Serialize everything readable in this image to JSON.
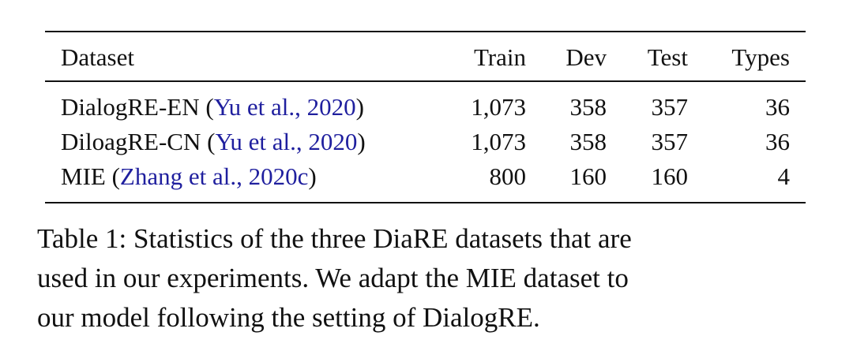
{
  "table": {
    "header": [
      "Dataset",
      "Train",
      "Dev",
      "Test",
      "Types"
    ],
    "rows": [
      {
        "name": "DialogRE-EN (",
        "cite": "Yu et al., 2020",
        "close": ")",
        "cells": [
          "1,073",
          358,
          357,
          36
        ]
      },
      {
        "name": "DiloagRE-CN (",
        "cite": "Yu et al., 2020",
        "close": ")",
        "cells": [
          "1,073",
          358,
          357,
          36
        ]
      },
      {
        "name": "MIE (",
        "cite": "Zhang et al., 2020c",
        "close": ")",
        "cells": [
          800,
          160,
          160,
          4
        ]
      }
    ]
  },
  "caption": {
    "lines": [
      "Table 1: Statistics of the three DiaRE datasets that are",
      "used in our experiments. We adapt the MIE dataset to",
      "our model following the setting of DialogRE."
    ]
  }
}
